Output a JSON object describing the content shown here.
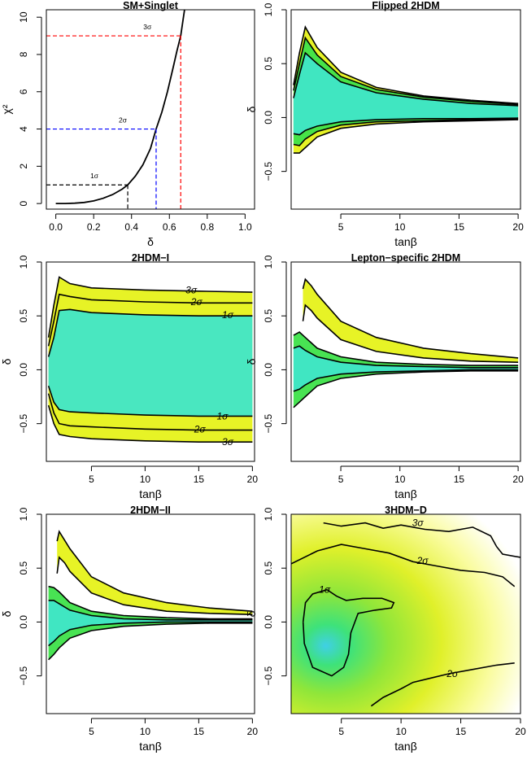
{
  "colors": {
    "line": "#000000",
    "red": "#ff0000",
    "blue": "#0000ff",
    "black": "#000000",
    "fill_inner": "#40e6c8",
    "fill_mid": "#3ee24a",
    "fill_outer": "#e6f21a",
    "fill_edge": "#ffff80"
  },
  "chart_data": [
    {
      "id": "sm-singlet",
      "type": "line",
      "title": "SM+Singlet",
      "xlabel": "δ",
      "ylabel": "χ²",
      "xlim": [
        -0.05,
        1.05
      ],
      "ylim": [
        -0.3,
        10.4
      ],
      "xticks": [
        0.0,
        0.2,
        0.4,
        0.6,
        0.8,
        1.0
      ],
      "xtick_labels": [
        "0.0",
        "0.2",
        "0.4",
        "0.6",
        "0.8",
        "1.0"
      ],
      "yticks": [
        0,
        2,
        4,
        6,
        8,
        10
      ],
      "ytick_labels": [
        "0",
        "2",
        "4",
        "6",
        "8",
        "10"
      ],
      "series": [
        {
          "x": [
            0.0,
            0.05,
            0.1,
            0.15,
            0.2,
            0.25,
            0.3,
            0.35,
            0.38,
            0.42,
            0.46,
            0.5,
            0.53,
            0.56,
            0.59,
            0.62,
            0.64,
            0.66,
            0.68
          ],
          "values": [
            0.0,
            0.0,
            0.02,
            0.06,
            0.14,
            0.28,
            0.48,
            0.77,
            1.0,
            1.47,
            2.08,
            2.95,
            4.0,
            4.9,
            6.0,
            7.3,
            8.2,
            9.0,
            10.4
          ]
        }
      ],
      "thresholds": [
        {
          "label": "1σ",
          "chi2": 1,
          "delta": 0.38,
          "color": "#000000"
        },
        {
          "label": "2σ",
          "chi2": 4,
          "delta": 0.53,
          "color": "#0000ff"
        },
        {
          "label": "3σ",
          "chi2": 9,
          "delta": 0.66,
          "color": "#ff0000"
        }
      ]
    },
    {
      "id": "flipped-2hdm",
      "type": "heatmap",
      "title": "Flipped 2HDM",
      "xlabel": "tanβ",
      "ylabel": "δ",
      "xlim": [
        0.8,
        20.2
      ],
      "ylim": [
        -0.85,
        1.0
      ],
      "xticks": [
        5,
        10,
        15,
        20
      ],
      "xtick_labels": [
        "5",
        "10",
        "15",
        "20"
      ],
      "yticks": [
        -0.5,
        0.0,
        0.5,
        1.0
      ],
      "ytick_labels": [
        "−0.5",
        "0.0",
        "0.5",
        "1.0"
      ],
      "bands": [
        {
          "level": "3σ",
          "x": [
            1.0,
            1.5,
            2.0,
            3,
            5,
            8,
            12,
            16,
            20
          ],
          "upper": [
            0.3,
            0.6,
            0.84,
            0.65,
            0.42,
            0.28,
            0.2,
            0.16,
            0.13
          ],
          "lower": [
            -0.33,
            -0.33,
            -0.28,
            -0.18,
            -0.1,
            -0.06,
            -0.04,
            -0.03,
            -0.02
          ]
        },
        {
          "level": "2σ",
          "x": [
            1.0,
            1.5,
            2.0,
            3,
            5,
            8,
            12,
            16,
            20
          ],
          "upper": [
            0.25,
            0.5,
            0.74,
            0.58,
            0.38,
            0.26,
            0.19,
            0.15,
            0.12
          ],
          "lower": [
            -0.25,
            -0.26,
            -0.2,
            -0.13,
            -0.07,
            -0.04,
            -0.03,
            -0.02,
            -0.015
          ]
        },
        {
          "level": "1σ",
          "x": [
            1.0,
            1.5,
            2.0,
            3,
            5,
            8,
            12,
            16,
            20
          ],
          "upper": [
            0.18,
            0.4,
            0.6,
            0.5,
            0.33,
            0.23,
            0.17,
            0.13,
            0.11
          ],
          "lower": [
            -0.15,
            -0.16,
            -0.12,
            -0.08,
            -0.04,
            -0.02,
            -0.01,
            -0.01,
            -0.005
          ]
        }
      ]
    },
    {
      "id": "2hdm-i",
      "type": "heatmap",
      "title": "2HDM−I",
      "xlabel": "tanβ",
      "ylabel": "δ",
      "xlim": [
        0.8,
        20.2
      ],
      "ylim": [
        -0.85,
        1.0
      ],
      "xticks": [
        5,
        10,
        15,
        20
      ],
      "xtick_labels": [
        "5",
        "10",
        "15",
        "20"
      ],
      "yticks": [
        -0.5,
        0.0,
        0.5,
        1.0
      ],
      "ytick_labels": [
        "−0.5",
        "0.0",
        "0.5",
        "1.0"
      ],
      "bands": [
        {
          "level": "3σ",
          "x": [
            1.0,
            1.5,
            2.0,
            3,
            5,
            10,
            15,
            20
          ],
          "upper": [
            0.3,
            0.6,
            0.86,
            0.8,
            0.76,
            0.74,
            0.73,
            0.72
          ],
          "lower": [
            -0.33,
            -0.5,
            -0.6,
            -0.62,
            -0.64,
            -0.66,
            -0.67,
            -0.67
          ]
        },
        {
          "level": "2σ",
          "x": [
            1.0,
            1.5,
            2.0,
            3,
            5,
            10,
            15,
            20
          ],
          "upper": [
            0.22,
            0.45,
            0.7,
            0.68,
            0.65,
            0.63,
            0.62,
            0.62
          ]
        },
        {
          "level": "1σ",
          "x": [
            1.0,
            1.5,
            2.0,
            3,
            5,
            10,
            15,
            20
          ],
          "upper": [
            0.12,
            0.3,
            0.55,
            0.56,
            0.53,
            0.51,
            0.5,
            0.5
          ],
          "lower": [
            -0.15,
            -0.3,
            -0.37,
            -0.39,
            -0.4,
            -0.42,
            -0.43,
            -0.43
          ]
        }
      ],
      "extra_lines": [
        {
          "level": "2σ",
          "x": [
            1.0,
            1.5,
            2.0,
            3,
            5,
            10,
            15,
            20
          ],
          "y": [
            -0.22,
            -0.4,
            -0.5,
            -0.52,
            -0.53,
            -0.55,
            -0.56,
            -0.56
          ]
        }
      ],
      "contour_labels": [
        {
          "text": "3σ",
          "x": 14.3,
          "y": 0.74
        },
        {
          "text": "2σ",
          "x": 14.8,
          "y": 0.63
        },
        {
          "text": "1σ",
          "x": 17.7,
          "y": 0.51
        },
        {
          "text": "1σ",
          "x": 17.2,
          "y": -0.43
        },
        {
          "text": "2σ",
          "x": 15.1,
          "y": -0.55
        },
        {
          "text": "3σ",
          "x": 17.7,
          "y": -0.67
        }
      ]
    },
    {
      "id": "lepton-specific-2hdm",
      "type": "heatmap",
      "title": "Lepton−specific 2HDM",
      "xlabel": "tanβ",
      "ylabel": "δ",
      "xlim": [
        0.8,
        20.2
      ],
      "ylim": [
        -0.85,
        1.0
      ],
      "xticks": [
        5,
        10,
        15,
        20
      ],
      "xtick_labels": [
        "5",
        "10",
        "15",
        "20"
      ],
      "yticks": [
        -0.5,
        0.0,
        0.5,
        1.0
      ],
      "ytick_labels": [
        "−0.5",
        "0.0",
        "0.5",
        "1.0"
      ],
      "bands": [
        {
          "level": "3σ-upper",
          "x": [
            1.8,
            2.0,
            2.5,
            3,
            5,
            8,
            12,
            16,
            20
          ],
          "upper": [
            0.75,
            0.84,
            0.78,
            0.7,
            0.45,
            0.3,
            0.2,
            0.15,
            0.11
          ],
          "lower": [
            0.45,
            0.6,
            0.55,
            0.48,
            0.28,
            0.17,
            0.11,
            0.08,
            0.07
          ]
        },
        {
          "level": "3σ-lower",
          "x": [
            1.0,
            1.5,
            2.0,
            3,
            5,
            8,
            12,
            16,
            20
          ],
          "upper": [
            0.32,
            0.35,
            0.3,
            0.2,
            0.12,
            0.07,
            0.05,
            0.04,
            0.04
          ],
          "lower": [
            -0.35,
            -0.3,
            -0.25,
            -0.15,
            -0.08,
            -0.04,
            -0.02,
            -0.01,
            -0.01
          ]
        },
        {
          "level": "1σ-lower",
          "x": [
            1.0,
            1.5,
            2.0,
            3,
            5,
            8,
            12,
            16,
            20
          ],
          "upper": [
            0.2,
            0.22,
            0.18,
            0.12,
            0.07,
            0.04,
            0.03,
            0.02,
            0.02
          ],
          "lower": [
            -0.2,
            -0.18,
            -0.14,
            -0.08,
            -0.04,
            -0.02,
            -0.01,
            0.0,
            0.0
          ]
        }
      ]
    },
    {
      "id": "2hdm-ii",
      "type": "heatmap",
      "title": "2HDM−II",
      "xlabel": "tanβ",
      "ylabel": "δ",
      "xlim": [
        0.8,
        20.2
      ],
      "ylim": [
        -0.85,
        1.0
      ],
      "xticks": [
        5,
        10,
        15,
        20
      ],
      "xtick_labels": [
        "5",
        "10",
        "15",
        "20"
      ],
      "yticks": [
        -0.5,
        0.0,
        0.5,
        1.0
      ],
      "ytick_labels": [
        "−0.5",
        "0.0",
        "0.5",
        "1.0"
      ],
      "bands": [
        {
          "level": "3σ-upper",
          "x": [
            1.8,
            2.0,
            2.5,
            3,
            5,
            8,
            12,
            16,
            20
          ],
          "upper": [
            0.75,
            0.84,
            0.76,
            0.68,
            0.42,
            0.27,
            0.18,
            0.13,
            0.1
          ],
          "lower": [
            0.45,
            0.6,
            0.55,
            0.47,
            0.27,
            0.16,
            0.1,
            0.08,
            0.07
          ]
        },
        {
          "level": "3σ-lower",
          "x": [
            1.0,
            1.5,
            2.0,
            3,
            5,
            8,
            12,
            16,
            20
          ],
          "upper": [
            0.33,
            0.32,
            0.28,
            0.18,
            0.1,
            0.06,
            0.04,
            0.03,
            0.03
          ],
          "lower": [
            -0.35,
            -0.3,
            -0.24,
            -0.15,
            -0.08,
            -0.04,
            -0.02,
            -0.01,
            -0.01
          ]
        },
        {
          "level": "1σ-lower",
          "x": [
            1.0,
            1.5,
            2.0,
            3,
            5,
            8,
            12,
            16,
            20
          ],
          "upper": [
            0.2,
            0.2,
            0.17,
            0.11,
            0.06,
            0.03,
            0.02,
            0.02,
            0.02
          ],
          "lower": [
            -0.22,
            -0.18,
            -0.13,
            -0.07,
            -0.03,
            -0.01,
            0.0,
            0.0,
            0.0
          ]
        }
      ]
    },
    {
      "id": "3hdm-d",
      "type": "heatmap",
      "title": "3HDM−D",
      "xlabel": "tanβ",
      "ylabel": "δ",
      "xlim": [
        0.8,
        20.0
      ],
      "ylim": [
        -0.85,
        1.0
      ],
      "xticks": [
        5,
        10,
        15,
        20
      ],
      "xtick_labels": [
        "5",
        "10",
        "15",
        "20"
      ],
      "yticks": [
        -0.5,
        0.0,
        0.5,
        1.0
      ],
      "ytick_labels": [
        "−0.5",
        "0.0",
        "0.5",
        "1.0"
      ],
      "contours": [
        {
          "level": "3σ",
          "x": [
            3.5,
            5,
            7,
            8.5,
            10,
            12,
            14,
            16,
            17.5,
            18,
            18.5,
            20
          ],
          "y": [
            0.92,
            0.89,
            0.92,
            0.87,
            0.9,
            0.86,
            0.84,
            0.88,
            0.8,
            0.7,
            0.63,
            0.6
          ]
        },
        {
          "level": "2σ-upper",
          "x": [
            0.8,
            3,
            5,
            7,
            9,
            11,
            13,
            15,
            17,
            18.5,
            19.5
          ],
          "y": [
            0.54,
            0.66,
            0.72,
            0.68,
            0.64,
            0.56,
            0.52,
            0.48,
            0.46,
            0.42,
            0.33
          ]
        },
        {
          "level": "2σ-lower",
          "x": [
            7.5,
            8.5,
            10,
            11,
            12.5,
            14,
            16,
            18,
            19.5
          ],
          "y": [
            -0.78,
            -0.7,
            -0.62,
            -0.56,
            -0.52,
            -0.48,
            -0.44,
            -0.4,
            -0.38
          ]
        },
        {
          "level": "1σ",
          "x": [
            1.8,
            2,
            2.6,
            3.8,
            4.6,
            5.4,
            6.8,
            8.4,
            9.4,
            9.2,
            7.8,
            6.4,
            5.8,
            5.6,
            5.2,
            4.2,
            2.6,
            1.9,
            1.8
          ],
          "y": [
            0.0,
            0.18,
            0.26,
            0.3,
            0.24,
            0.2,
            0.22,
            0.22,
            0.18,
            0.13,
            0.11,
            0.08,
            -0.1,
            -0.3,
            -0.42,
            -0.5,
            -0.42,
            -0.2,
            0.0
          ]
        }
      ],
      "contour_labels": [
        {
          "text": "3σ",
          "x": 11.4,
          "y": 0.92
        },
        {
          "text": "2σ",
          "x": 11.8,
          "y": 0.57
        },
        {
          "text": "1σ",
          "x": 3.6,
          "y": 0.3
        },
        {
          "text": "2σ",
          "x": 14.3,
          "y": -0.48
        }
      ]
    }
  ]
}
